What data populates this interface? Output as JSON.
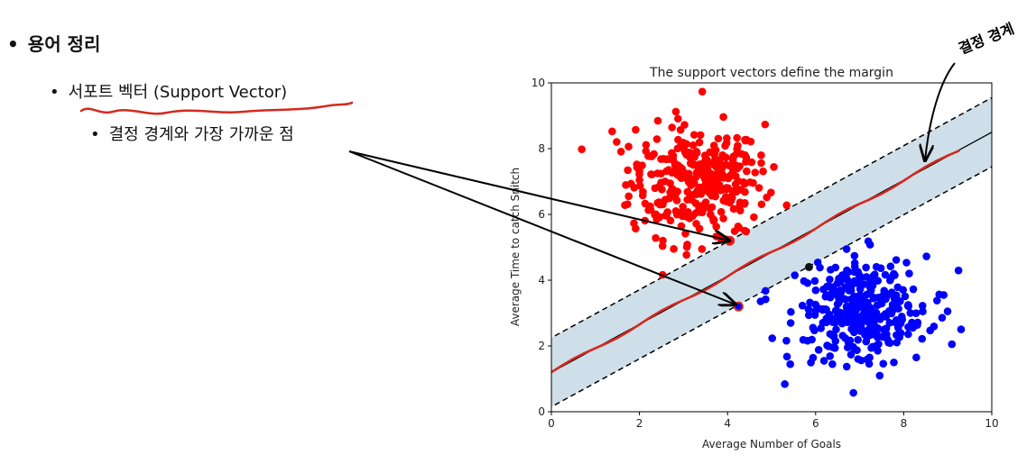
{
  "slide": {
    "bullet1": "용어 정리",
    "bullet2": "서포트 벡터 (Support Vector)",
    "bullet3": "결정 경계와 가장 가까운 점",
    "bullet_glyph": "•",
    "handwritten_note": "결정 경계"
  },
  "colors": {
    "red_class": "#ff0000",
    "blue_class": "#0000ff",
    "margin_fill": "#cfdfea",
    "annotation": "#d42a1e",
    "arrow": "#000000"
  },
  "chart_data": {
    "type": "scatter",
    "title": "The support vectors define the margin",
    "xlabel": "Average Number of Goals",
    "ylabel": "Average Time to catch Snitch",
    "xlim": [
      0,
      10
    ],
    "ylim": [
      0,
      10
    ],
    "xticks": [
      "0",
      "2",
      "4",
      "6",
      "8",
      "10"
    ],
    "yticks": [
      "0",
      "2",
      "4",
      "6",
      "8",
      "10"
    ],
    "decision_boundary": {
      "slope": 0.73,
      "intercept": 1.2
    },
    "margin_upper": {
      "slope": 0.73,
      "intercept": 2.25
    },
    "margin_lower": {
      "slope": 0.73,
      "intercept": 0.15
    },
    "series": [
      {
        "cluster_center": [
          3.3,
          7.0
        ],
        "spread": [
          0.75,
          0.85
        ],
        "count": 330,
        "color": "#ff0000"
      },
      {
        "cluster_center": [
          7.0,
          3.0
        ],
        "spread": [
          0.75,
          0.85
        ],
        "count": 330,
        "color": "#0000ff"
      }
    ],
    "support_vectors": [
      [
        4.05,
        5.2
      ],
      [
        4.25,
        3.2
      ],
      [
        5.85,
        4.4
      ]
    ],
    "grid": false
  }
}
